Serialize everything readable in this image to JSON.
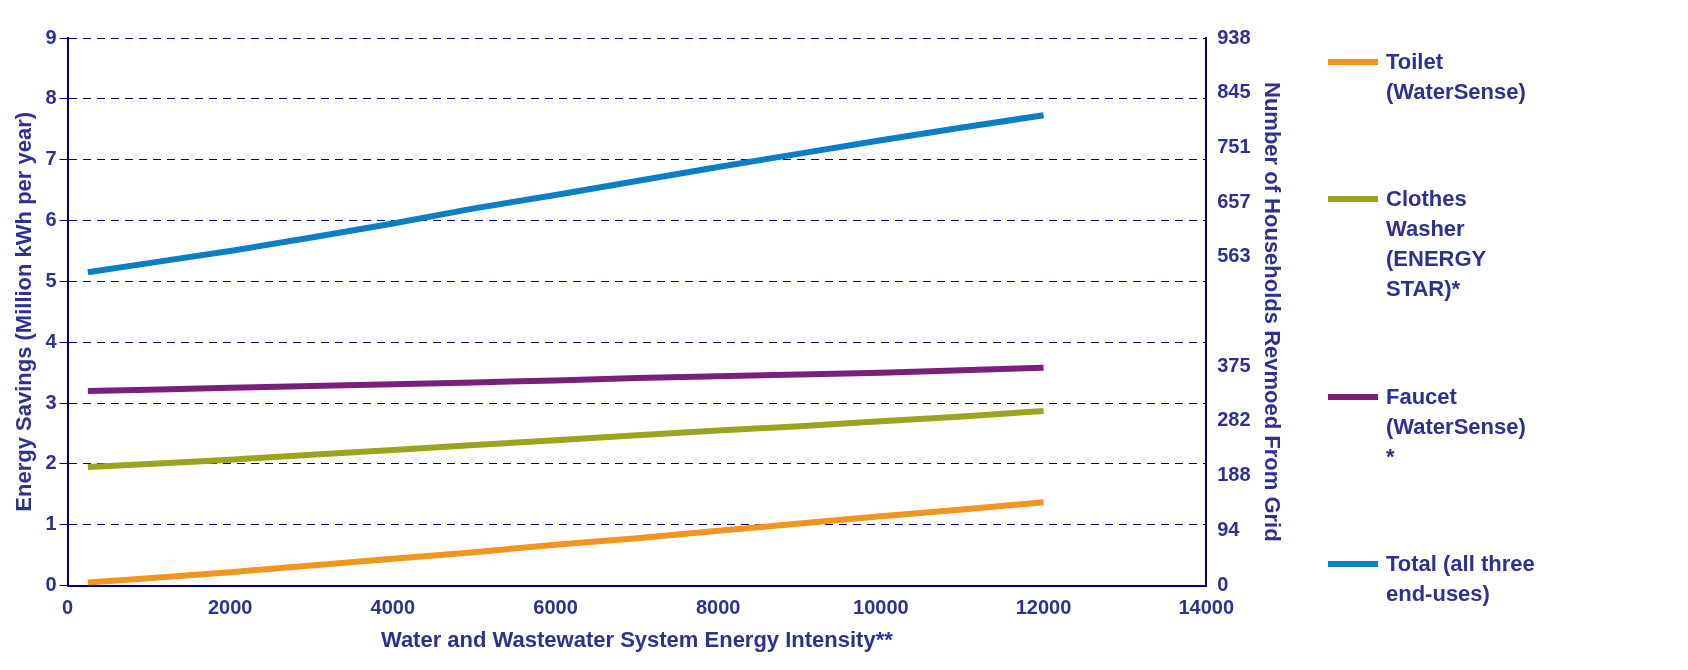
{
  "chart_data": {
    "type": "line",
    "xlabel": "Water and Wastewater System Energy Intensity**",
    "ylabel": "Energy Savings (Million kWh per year)",
    "y2label": "Number of Households Revmoed From Grid",
    "x": [
      250,
      1000,
      2000,
      3000,
      4000,
      5000,
      6000,
      7000,
      8000,
      9000,
      10000,
      11000,
      12000
    ],
    "series": [
      {
        "name": "Toilet (WaterSense)",
        "color": "#f0961e",
        "values": [
          0.05,
          0.12,
          0.22,
          0.33,
          0.44,
          0.55,
          0.67,
          0.78,
          0.9,
          1.02,
          1.14,
          1.25,
          1.37
        ]
      },
      {
        "name": "Clothes Washer (ENERGY STAR)*",
        "color": "#9aa41e",
        "values": [
          1.95,
          2.0,
          2.07,
          2.15,
          2.23,
          2.31,
          2.39,
          2.47,
          2.55,
          2.62,
          2.7,
          2.78,
          2.87
        ]
      },
      {
        "name": "Faucet (WaterSense) *",
        "color": "#7b1f7d",
        "values": [
          3.2,
          3.22,
          3.25,
          3.28,
          3.31,
          3.34,
          3.37,
          3.41,
          3.44,
          3.47,
          3.5,
          3.54,
          3.58
        ]
      },
      {
        "name": "Total (all three end-uses)",
        "color": "#0a7fc4",
        "values": [
          5.15,
          5.3,
          5.5,
          5.72,
          5.95,
          6.2,
          6.42,
          6.65,
          6.88,
          7.1,
          7.32,
          7.53,
          7.73
        ]
      }
    ],
    "xlim": [
      0,
      14000
    ],
    "xticks": [
      0,
      2000,
      4000,
      6000,
      8000,
      10000,
      12000,
      14000
    ],
    "ylim": [
      0,
      9
    ],
    "yticks": [
      0,
      1,
      2,
      3,
      4,
      5,
      6,
      7,
      8,
      9
    ],
    "y2lim": [
      0,
      938
    ],
    "y2ticks": [
      0,
      94,
      188,
      282,
      375,
      563,
      657,
      751,
      845,
      938
    ],
    "grid": "y",
    "legend": "right",
    "marker": "none",
    "line_style": "solid"
  }
}
